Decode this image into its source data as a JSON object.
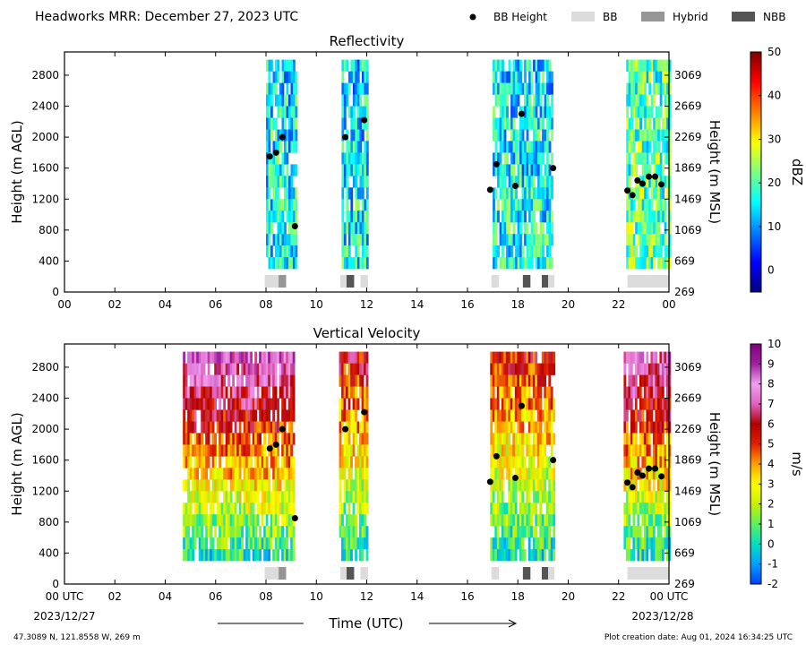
{
  "header": {
    "title": "Headworks MRR:  December 27, 2023 UTC",
    "legend": [
      {
        "label": "BB Height",
        "kind": "marker",
        "color": "#000000"
      },
      {
        "label": "BB",
        "kind": "patch",
        "color": "#dcdcdc"
      },
      {
        "label": "Hybrid",
        "kind": "patch",
        "color": "#969696"
      },
      {
        "label": "NBB",
        "kind": "patch",
        "color": "#555555"
      }
    ]
  },
  "footer": {
    "location": "47.3089 N, 121.8558 W, 269 m",
    "creation": "Plot creation date: Aug 01, 2024 16:34:25 UTC",
    "xlabel": "Time (UTC)",
    "start_label": "00 UTC",
    "start_date": "2023/12/27",
    "end_label": "00 UTC",
    "end_date": "2023/12/28"
  },
  "chart_data": [
    {
      "type": "heatmap",
      "title": "Reflectivity",
      "xlabel": "",
      "ylabel": "Height (m AGL)",
      "ylabel_right": "Height (m MSL)",
      "xlim": [
        0,
        24
      ],
      "ylim": [
        0,
        3100
      ],
      "x_ticks": [
        "00",
        "02",
        "04",
        "06",
        "08",
        "10",
        "12",
        "14",
        "16",
        "18",
        "20",
        "22",
        "00"
      ],
      "y_ticks": [
        0,
        400,
        800,
        1200,
        1600,
        2000,
        2400,
        2800
      ],
      "y_ticks_right": [
        269,
        669,
        1069,
        1469,
        1869,
        2269,
        2669,
        3069
      ],
      "colorbar": {
        "label": "dBZ",
        "min": -5,
        "max": 50,
        "ticks": [
          0,
          10,
          20,
          30,
          40,
          50
        ],
        "colors": [
          "#00007f",
          "#0000ff",
          "#007fff",
          "#00ffff",
          "#7fff7f",
          "#ffff00",
          "#ff7f00",
          "#ff0000",
          "#7f0000"
        ]
      },
      "data_min_height": 300,
      "data_max_height": 3000,
      "echo_periods": [
        {
          "start": 8.0,
          "end": 9.2,
          "intensity": 0.3
        },
        {
          "start": 11.0,
          "end": 12.0,
          "intensity": 0.25
        },
        {
          "start": 17.0,
          "end": 19.4,
          "intensity": 0.3
        },
        {
          "start": 22.3,
          "end": 24.0,
          "intensity": 0.55
        }
      ],
      "bb_height": [
        {
          "x": 8.15,
          "y": 1750
        },
        {
          "x": 8.4,
          "y": 1800
        },
        {
          "x": 8.65,
          "y": 2000
        },
        {
          "x": 9.15,
          "y": 850
        },
        {
          "x": 11.15,
          "y": 2000
        },
        {
          "x": 11.9,
          "y": 2220
        },
        {
          "x": 16.9,
          "y": 1320
        },
        {
          "x": 17.15,
          "y": 1650
        },
        {
          "x": 17.9,
          "y": 1370
        },
        {
          "x": 18.15,
          "y": 2300
        },
        {
          "x": 19.4,
          "y": 1600
        },
        {
          "x": 22.35,
          "y": 1310
        },
        {
          "x": 22.55,
          "y": 1250
        },
        {
          "x": 22.75,
          "y": 1440
        },
        {
          "x": 22.95,
          "y": 1400
        },
        {
          "x": 23.2,
          "y": 1490
        },
        {
          "x": 23.45,
          "y": 1490
        },
        {
          "x": 23.7,
          "y": 1390
        }
      ],
      "bb_type_bar": [
        {
          "start": 7.95,
          "end": 8.5,
          "type": "BB"
        },
        {
          "start": 8.5,
          "end": 8.8,
          "type": "Hybrid"
        },
        {
          "start": 10.95,
          "end": 11.2,
          "type": "BB"
        },
        {
          "start": 11.2,
          "end": 11.5,
          "type": "NBB"
        },
        {
          "start": 11.75,
          "end": 12.05,
          "type": "BB"
        },
        {
          "start": 16.95,
          "end": 17.25,
          "type": "BB"
        },
        {
          "start": 18.2,
          "end": 18.5,
          "type": "NBB"
        },
        {
          "start": 18.95,
          "end": 19.2,
          "type": "NBB"
        },
        {
          "start": 19.2,
          "end": 19.45,
          "type": "BB"
        },
        {
          "start": 22.35,
          "end": 24.0,
          "type": "BB"
        }
      ]
    },
    {
      "type": "heatmap",
      "title": "Vertical Velocity",
      "xlabel": "",
      "ylabel": "Height (m AGL)",
      "ylabel_right": "Height (m MSL)",
      "xlim": [
        0,
        24
      ],
      "ylim": [
        0,
        3100
      ],
      "x_ticks": [
        "00 UTC",
        "02",
        "04",
        "06",
        "08",
        "10",
        "12",
        "14",
        "16",
        "18",
        "20",
        "22",
        "00 UTC"
      ],
      "y_ticks": [
        0,
        400,
        800,
        1200,
        1600,
        2000,
        2400,
        2800
      ],
      "y_ticks_right": [
        269,
        669,
        1069,
        1469,
        1869,
        2269,
        2669,
        3069
      ],
      "colorbar": {
        "label": "m/s",
        "min": -2,
        "max": 10,
        "ticks": [
          -2,
          -1,
          0,
          1,
          2,
          3,
          4,
          5,
          6,
          7,
          8,
          9,
          10
        ],
        "colors": [
          "#0040ff",
          "#00a0ff",
          "#00e0c0",
          "#60f060",
          "#c8f000",
          "#ffff00",
          "#ffa000",
          "#e02000",
          "#b00000",
          "#e060c0",
          "#f0a0f0",
          "#a020a0",
          "#800080"
        ]
      },
      "data_min_height": 300,
      "data_max_height": 3000,
      "echo_periods": [
        {
          "start": 4.7,
          "end": 9.1,
          "intensity": 0.8
        },
        {
          "start": 10.9,
          "end": 12.0,
          "intensity": 0.5
        },
        {
          "start": 16.9,
          "end": 19.4,
          "intensity": 0.45
        },
        {
          "start": 22.2,
          "end": 24.0,
          "intensity": 0.75
        }
      ],
      "bb_height": [
        {
          "x": 8.15,
          "y": 1750
        },
        {
          "x": 8.4,
          "y": 1800
        },
        {
          "x": 8.65,
          "y": 2000
        },
        {
          "x": 9.15,
          "y": 850
        },
        {
          "x": 11.15,
          "y": 2000
        },
        {
          "x": 11.9,
          "y": 2220
        },
        {
          "x": 16.9,
          "y": 1320
        },
        {
          "x": 17.15,
          "y": 1650
        },
        {
          "x": 17.9,
          "y": 1370
        },
        {
          "x": 18.15,
          "y": 2300
        },
        {
          "x": 19.4,
          "y": 1600
        },
        {
          "x": 22.35,
          "y": 1310
        },
        {
          "x": 22.55,
          "y": 1250
        },
        {
          "x": 22.75,
          "y": 1440
        },
        {
          "x": 22.95,
          "y": 1400
        },
        {
          "x": 23.2,
          "y": 1490
        },
        {
          "x": 23.45,
          "y": 1490
        },
        {
          "x": 23.7,
          "y": 1390
        }
      ],
      "bb_type_bar": [
        {
          "start": 7.95,
          "end": 8.5,
          "type": "BB"
        },
        {
          "start": 8.5,
          "end": 8.8,
          "type": "Hybrid"
        },
        {
          "start": 10.95,
          "end": 11.2,
          "type": "BB"
        },
        {
          "start": 11.2,
          "end": 11.5,
          "type": "NBB"
        },
        {
          "start": 11.75,
          "end": 12.05,
          "type": "BB"
        },
        {
          "start": 16.95,
          "end": 17.25,
          "type": "BB"
        },
        {
          "start": 18.2,
          "end": 18.5,
          "type": "NBB"
        },
        {
          "start": 18.95,
          "end": 19.2,
          "type": "NBB"
        },
        {
          "start": 19.2,
          "end": 19.45,
          "type": "BB"
        },
        {
          "start": 22.35,
          "end": 24.0,
          "type": "BB"
        }
      ]
    }
  ]
}
